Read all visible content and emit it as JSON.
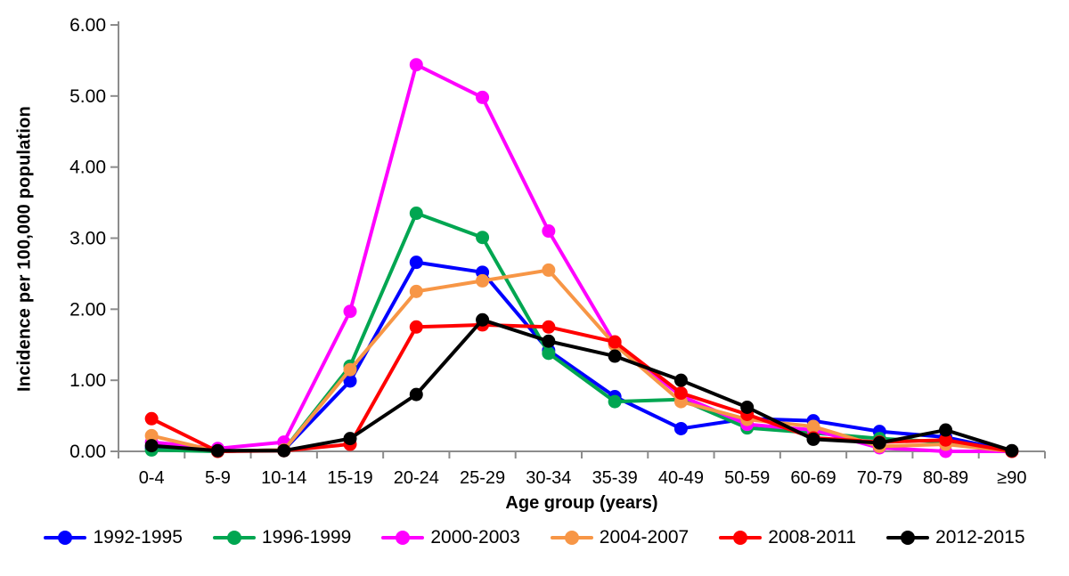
{
  "figure": {
    "background": "#FFFFFF",
    "axis_color": "#8C8C8C",
    "text_color": "#000000"
  },
  "chart_data": {
    "type": "line",
    "title": "",
    "xlabel": "Age group (years)",
    "ylabel": "Incidence per 100,000 population",
    "ylim": [
      0,
      6
    ],
    "ytick_step": 1,
    "ytick_labels": [
      "0.00",
      "1.00",
      "2.00",
      "3.00",
      "4.00",
      "5.00",
      "6.00"
    ],
    "grid": false,
    "legend_position": "bottom",
    "categories": [
      "0-4",
      "5-9",
      "10-14",
      "15-19",
      "20-24",
      "25-29",
      "30-34",
      "35-39",
      "40-49",
      "50-59",
      "60-69",
      "70-79",
      "80-89",
      "≥90"
    ],
    "series": [
      {
        "name": "1992-1995",
        "color": "#0000FF",
        "values": [
          0.05,
          0.0,
          0.02,
          0.99,
          2.66,
          2.52,
          1.42,
          0.77,
          0.32,
          0.46,
          0.43,
          0.28,
          0.2,
          0.0
        ]
      },
      {
        "name": "1996-1999",
        "color": "#00A651",
        "values": [
          0.02,
          0.0,
          0.02,
          1.2,
          3.35,
          3.01,
          1.38,
          0.7,
          0.73,
          0.33,
          0.26,
          0.18,
          0.13,
          0.0
        ]
      },
      {
        "name": "2000-2003",
        "color": "#FF00FF",
        "values": [
          0.13,
          0.04,
          0.13,
          1.97,
          5.44,
          4.98,
          3.1,
          1.52,
          0.78,
          0.38,
          0.3,
          0.05,
          0.0,
          0.0
        ]
      },
      {
        "name": "2004-2007",
        "color": "#F79646",
        "values": [
          0.22,
          0.0,
          0.02,
          1.15,
          2.25,
          2.4,
          2.55,
          1.5,
          0.7,
          0.45,
          0.35,
          0.07,
          0.1,
          0.0
        ]
      },
      {
        "name": "2008-2011",
        "color": "#FF0000",
        "values": [
          0.46,
          0.0,
          0.01,
          0.1,
          1.75,
          1.78,
          1.75,
          1.54,
          0.82,
          0.52,
          0.19,
          0.13,
          0.16,
          0.0
        ]
      },
      {
        "name": "2012-2015",
        "color": "#000000",
        "values": [
          0.08,
          0.01,
          0.01,
          0.18,
          0.8,
          1.85,
          1.55,
          1.34,
          1.0,
          0.62,
          0.17,
          0.12,
          0.3,
          0.01
        ]
      }
    ]
  }
}
